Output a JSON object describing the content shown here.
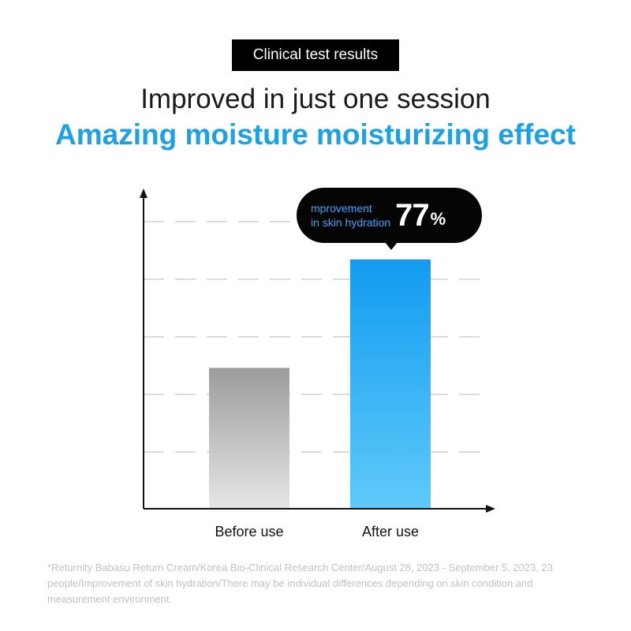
{
  "header": {
    "badge": "Clinical test results",
    "line1": "Improved in just one session",
    "line2": "Amazing moisture moisturizing effect"
  },
  "chart_data": {
    "type": "bar",
    "categories": [
      "Before use",
      "After use"
    ],
    "values": [
      100,
      177
    ],
    "ylim": [
      0,
      210
    ],
    "grid": true,
    "bar_colors": [
      "#a6a6a6",
      "#1aa0f2"
    ],
    "annotation": {
      "label_lines": [
        "mprovement",
        "in skin hydration"
      ],
      "value": "77",
      "unit": "%",
      "target_category": "After use"
    }
  },
  "footnote": "*Returnity Babasu Return Cream/Korea Bio-Clinical Research Center/August 28, 2023 - September 5, 2023, 23 people/Improvement of skin hydration/There may be individual differences depending on skin condition and measurement environment."
}
